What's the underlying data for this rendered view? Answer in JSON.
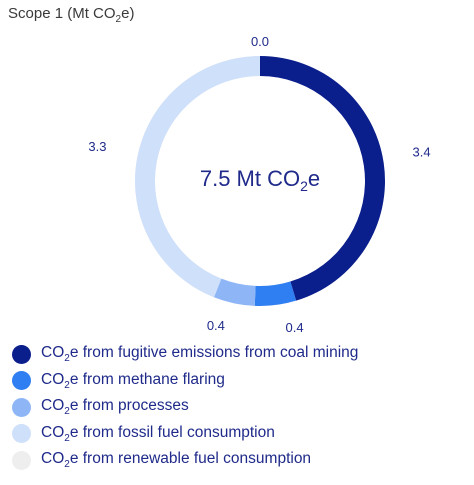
{
  "title": {
    "prefix": "Scope 1 (Mt CO",
    "sub": "2",
    "suffix": "e)"
  },
  "chart_data": {
    "type": "pie",
    "variant": "donut",
    "center_label": {
      "prefix": "7.5 Mt CO",
      "sub": "2",
      "suffix": "e"
    },
    "categories": [
      "CO2e from fugitive emissions from coal mining",
      "CO2e from methane flaring",
      "CO2e from processes",
      "CO2e from fossil fuel consumption",
      "CO2e from renewable fuel consumption"
    ],
    "values": [
      3.4,
      0.4,
      0.4,
      3.3,
      0.0
    ],
    "value_labels": [
      "3.4",
      "0.4",
      "0.4",
      "3.3",
      "0.0"
    ],
    "colors": [
      "#0a1e8c",
      "#2f7ff2",
      "#8eb6f7",
      "#cfe0fa",
      "#eeeeee"
    ],
    "legend": {
      "position": "bottom",
      "items": [
        {
          "prefix": "CO",
          "sub": "2",
          "suffix": "e from fugitive emissions from coal mining",
          "color": "#0a1e8c"
        },
        {
          "prefix": "CO",
          "sub": "2",
          "suffix": "e from methane flaring",
          "color": "#2f7ff2"
        },
        {
          "prefix": "CO",
          "sub": "2",
          "suffix": "e from processes",
          "color": "#8eb6f7"
        },
        {
          "prefix": "CO",
          "sub": "2",
          "suffix": "e from fossil fuel consumption",
          "color": "#cfe0fa"
        },
        {
          "prefix": "CO",
          "sub": "2",
          "suffix": "e from renewable fuel consumption",
          "color": "#eeeeee"
        }
      ]
    }
  }
}
